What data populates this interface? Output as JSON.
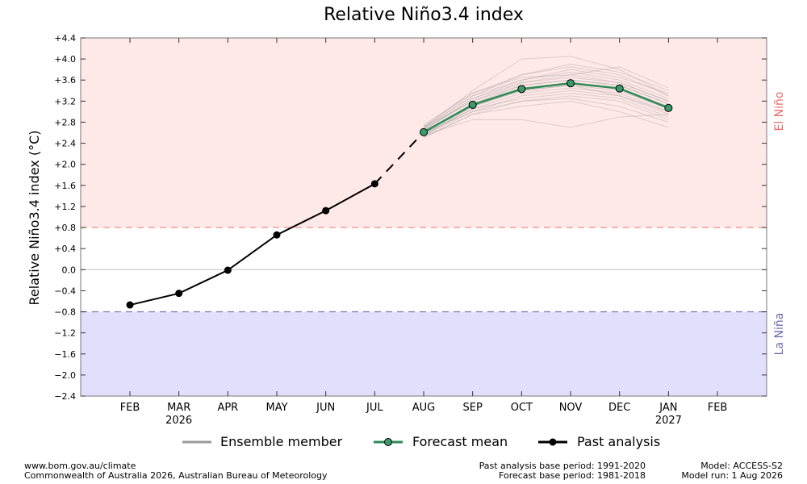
{
  "chart_data": {
    "type": "line",
    "title": "Relative Niño3.4 index",
    "ylabel": "Relative Niño3.4 index (°C)",
    "xlabel": "",
    "ylim": [
      -2.4,
      4.4
    ],
    "yticks": [
      -2.4,
      -2.0,
      -1.6,
      -1.2,
      -0.8,
      -0.4,
      0.0,
      0.4,
      0.8,
      1.2,
      1.6,
      2.0,
      2.4,
      2.8,
      3.2,
      3.6,
      4.0,
      4.4
    ],
    "ytick_labels": [
      "−2.4",
      "−2.0",
      "−1.6",
      "−1.2",
      "−0.8",
      "−0.4",
      "0.0",
      "+0.4",
      "+0.8",
      "+1.2",
      "+1.6",
      "+2.0",
      "+2.4",
      "+2.8",
      "+3.2",
      "+3.6",
      "+4.0",
      "+4.4"
    ],
    "categories": [
      "FEB",
      "MAR",
      "APR",
      "MAY",
      "JUN",
      "JUL",
      "AUG",
      "SEP",
      "OCT",
      "NOV",
      "DEC",
      "JAN",
      "FEB"
    ],
    "category_sublabels": [
      "",
      "2026",
      "",
      "",
      "",
      "",
      "",
      "",
      "",
      "",
      "",
      "2027",
      ""
    ],
    "thresholds": {
      "el_nino": 0.8,
      "la_nina": -0.8,
      "zero": 0.0
    },
    "region_labels": {
      "el_nino": "El Niño",
      "la_nina": "La Niña"
    },
    "colors": {
      "el_nino_fill": "#ffe8e8",
      "la_nina_fill": "#e0e0fc",
      "el_nino_line": "#f08080",
      "la_nina_line": "#7878b0",
      "el_nino_text": "#e86a6a",
      "la_nina_text": "#6a6aaa",
      "past": "#000000",
      "forecast": "#2e8b57",
      "forecast_marker": "#3a9a6a",
      "ensemble": "#999999"
    },
    "grid": false,
    "legend_position": "bottom",
    "series": [
      {
        "name": "Past analysis",
        "x": [
          "FEB",
          "MAR",
          "APR",
          "MAY",
          "JUN",
          "JUL"
        ],
        "values": [
          -0.67,
          -0.45,
          -0.01,
          0.66,
          1.12,
          1.63
        ]
      },
      {
        "name": "Forecast mean",
        "x": [
          "AUG",
          "SEP",
          "OCT",
          "NOV",
          "DEC",
          "JAN"
        ],
        "values": [
          2.61,
          3.13,
          3.43,
          3.54,
          3.44,
          3.07
        ]
      },
      {
        "name": "Ensemble member",
        "x": [
          "AUG",
          "SEP",
          "OCT",
          "NOV",
          "DEC",
          "JAN"
        ],
        "members": [
          [
            2.7,
            3.4,
            4.0,
            4.05,
            3.8,
            3.3
          ],
          [
            2.55,
            2.85,
            2.85,
            2.7,
            2.9,
            2.95
          ],
          [
            2.5,
            2.95,
            3.1,
            3.2,
            3.0,
            2.7
          ],
          [
            2.75,
            3.35,
            3.7,
            3.85,
            3.7,
            3.3
          ],
          [
            2.65,
            3.25,
            3.55,
            3.65,
            3.55,
            3.2
          ],
          [
            2.6,
            3.1,
            3.4,
            3.5,
            3.4,
            3.05
          ],
          [
            2.55,
            3.0,
            3.3,
            3.4,
            3.3,
            2.95
          ],
          [
            2.7,
            3.2,
            3.5,
            3.6,
            3.5,
            3.15
          ],
          [
            2.58,
            3.05,
            3.35,
            3.45,
            3.35,
            3.0
          ],
          [
            2.68,
            3.3,
            3.6,
            3.75,
            3.6,
            3.25
          ],
          [
            2.52,
            2.95,
            3.2,
            3.3,
            3.2,
            2.85
          ],
          [
            2.72,
            3.35,
            3.65,
            3.7,
            3.85,
            3.45
          ],
          [
            2.62,
            3.15,
            3.45,
            3.55,
            3.45,
            3.1
          ],
          [
            2.56,
            3.05,
            3.25,
            3.35,
            3.25,
            2.9
          ],
          [
            2.66,
            3.2,
            3.55,
            3.7,
            3.55,
            3.2
          ],
          [
            2.6,
            3.0,
            3.2,
            3.25,
            3.1,
            2.8
          ],
          [
            2.64,
            3.25,
            3.6,
            3.8,
            3.65,
            3.35
          ],
          [
            2.54,
            3.1,
            3.4,
            3.5,
            3.3,
            3.0
          ],
          [
            2.7,
            3.3,
            3.7,
            3.9,
            3.75,
            3.4
          ],
          [
            2.58,
            3.15,
            3.5,
            3.6,
            3.5,
            3.15
          ]
        ]
      }
    ],
    "legend": [
      "Ensemble member",
      "Forecast mean",
      "Past analysis"
    ]
  },
  "footer": {
    "left_line1": "www.bom.gov.au/climate",
    "left_line2": "Commonwealth of Australia 2026, Australian Bureau of Meteorology",
    "mid_line1": "Past analysis base period: 1991-2020",
    "mid_line2": "Forecast base period: 1981-2018",
    "right_line1": "Model: ACCESS-S2",
    "right_line2": "Model run: 1 Aug 2026"
  }
}
